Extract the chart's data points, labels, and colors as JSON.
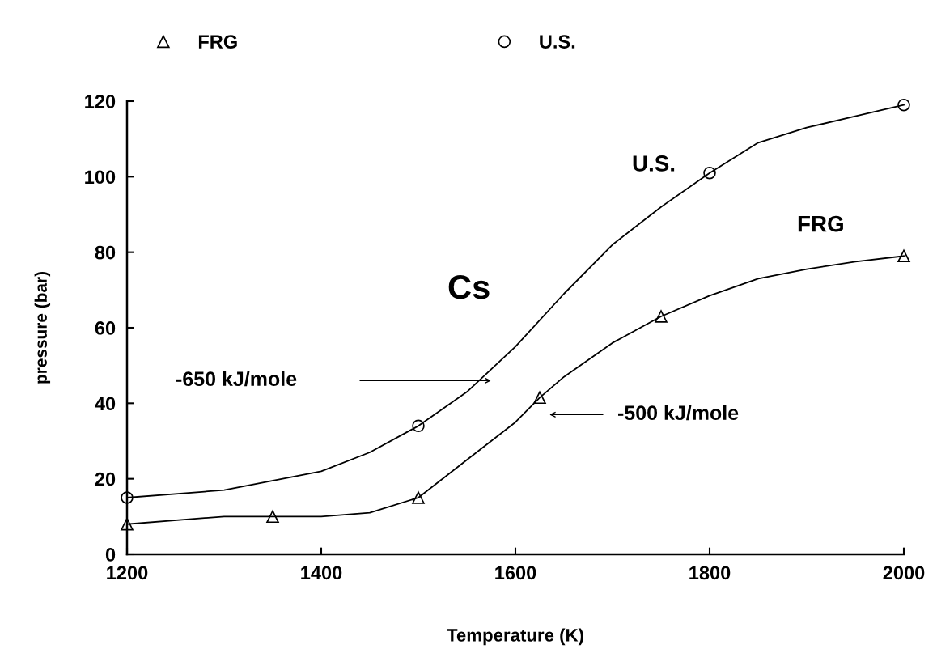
{
  "chart_data": {
    "type": "scatter",
    "xlabel": "Temperature (K)",
    "ylabel": "pressure (bar)",
    "xlim": [
      1200,
      2000
    ],
    "xticks": [
      1200,
      1400,
      1600,
      1800,
      2000
    ],
    "ylim": [
      0,
      120
    ],
    "yticks": [
      0,
      20,
      40,
      60,
      80,
      100,
      120
    ],
    "grid": false,
    "legend": "top",
    "series": [
      {
        "name": "FRG",
        "marker": "triangle",
        "color": "#000000",
        "x": [
          1200,
          1350,
          1500,
          1625,
          1750,
          2000
        ],
        "values": [
          8,
          10,
          15,
          41.5,
          63,
          79
        ]
      },
      {
        "name": "U.S.",
        "marker": "circle",
        "color": "#000000",
        "x": [
          1200,
          1500,
          1800,
          2000
        ],
        "values": [
          15,
          34,
          101,
          119
        ]
      },
      {
        "type": "line",
        "marker": "none",
        "color": "#000000",
        "x": [
          1200,
          1300,
          1350,
          1400,
          1450,
          1500,
          1550,
          1600,
          1625,
          1650,
          1700,
          1750,
          1800,
          1850,
          1900,
          1950,
          2000
        ],
        "values": [
          8,
          10,
          10,
          10,
          11,
          15,
          25,
          35,
          41.5,
          47,
          56,
          63,
          68.5,
          73,
          75.5,
          77.5,
          79
        ]
      },
      {
        "type": "line",
        "marker": "none",
        "color": "#000000",
        "x": [
          1200,
          1300,
          1400,
          1450,
          1500,
          1550,
          1600,
          1650,
          1700,
          1750,
          1800,
          1850,
          1900,
          1950,
          2000
        ],
        "values": [
          15,
          17,
          22,
          27,
          34,
          43,
          55,
          69,
          82,
          92,
          101,
          109,
          113,
          116,
          119
        ]
      }
    ],
    "annotations": [
      "U.S.",
      "FRG",
      "Cs",
      "-650 kJ/mole",
      "-500 kJ/mole"
    ]
  }
}
